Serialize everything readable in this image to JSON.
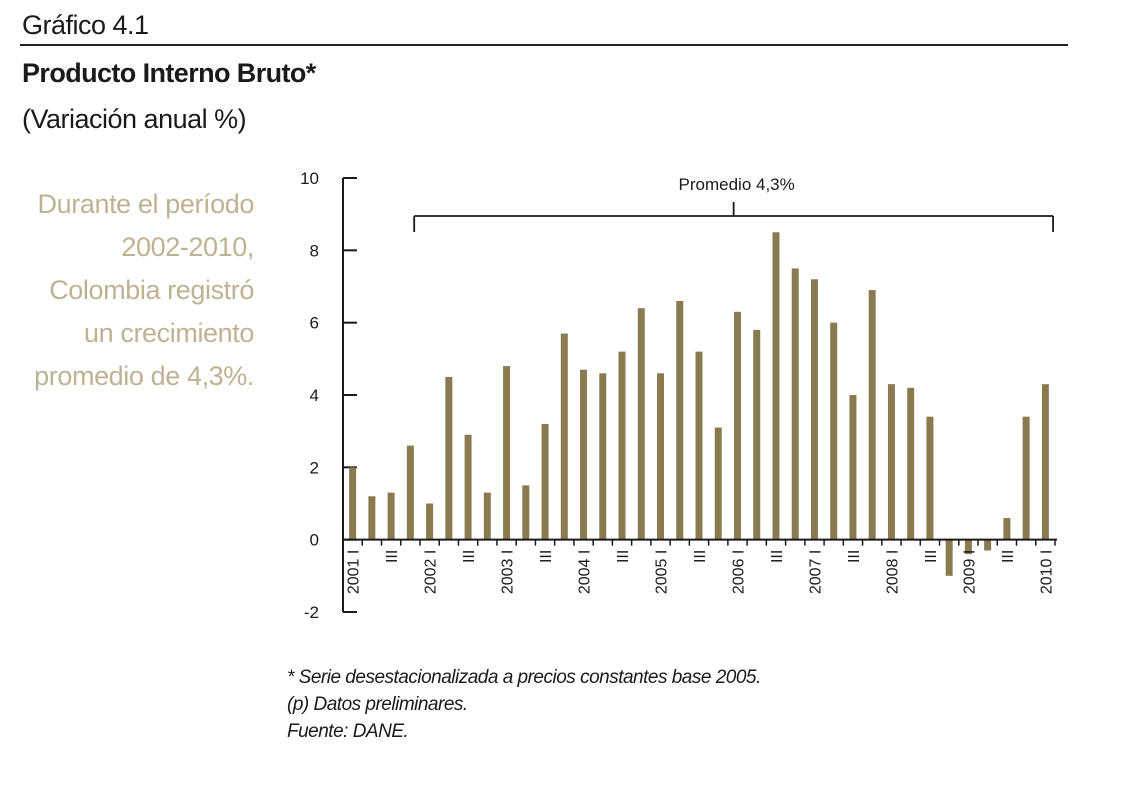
{
  "header": {
    "kicker": "Gráfico 4.1",
    "title": "Producto Interno Bruto*",
    "subtitle": "(Variación anual %)"
  },
  "side_note": {
    "lines": [
      "Durante el período",
      "2002-2010,",
      "Colombia registró",
      "un crecimiento",
      "promedio de 4,3%."
    ]
  },
  "notes": {
    "line1": "* Serie desestacionalizada a precios constantes base 2005.",
    "line2": "(p) Datos preliminares.",
    "line3": "Fuente: DANE."
  },
  "chart_data": {
    "type": "bar",
    "ylim": [
      -2,
      10
    ],
    "yticks": [
      -2,
      0,
      2,
      4,
      6,
      8,
      10
    ],
    "bar_color": "#8a7a4f",
    "categories": [
      "2001 I",
      "",
      "III",
      "",
      "2002 I",
      "",
      "III",
      "",
      "2003 I",
      "",
      "III",
      "",
      "2004 I",
      "",
      "III",
      "",
      "2005 I",
      "",
      "III",
      "",
      "2006 I",
      "",
      "III",
      "",
      "2007 I",
      "",
      "III",
      "",
      "2008 I",
      "",
      "III",
      "",
      "2009 I",
      "",
      "III",
      "",
      "2010 I"
    ],
    "values": [
      2.0,
      1.2,
      1.3,
      2.6,
      1.0,
      4.5,
      2.9,
      1.3,
      4.8,
      1.5,
      3.2,
      5.7,
      4.7,
      4.6,
      5.2,
      6.4,
      4.6,
      6.6,
      5.2,
      3.1,
      6.3,
      5.8,
      8.5,
      7.5,
      7.2,
      6.0,
      4.0,
      6.9,
      4.3,
      4.2,
      3.4,
      -1.0,
      -0.4,
      -0.3,
      0.6,
      3.4,
      4.3
    ],
    "annotation": {
      "label": "Promedio 4,3%",
      "from_index": 4,
      "to_index": 36
    }
  }
}
